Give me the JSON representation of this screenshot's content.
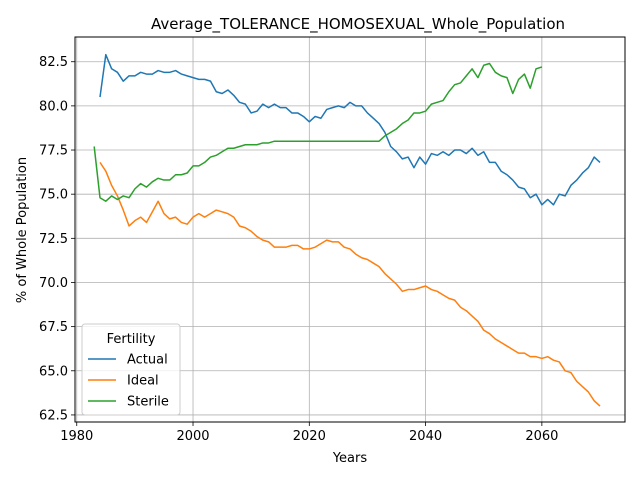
{
  "chart_data": {
    "type": "line",
    "title": "Average_TOLERANCE_HOMOSEXUAL_Whole_Population",
    "xlabel": "Years",
    "ylabel": "% of Whole Population",
    "xlim": [
      1979.7,
      1974.3
    ],
    "ylim": [
      62.1,
      83.9
    ],
    "xticks": [
      1980,
      2000,
      2020,
      2040,
      2060
    ],
    "yticks": [
      62.5,
      65.0,
      67.5,
      70.0,
      72.5,
      75.0,
      77.5,
      80.0,
      82.5
    ],
    "grid": true,
    "legend": {
      "title": "Fertility",
      "placement": "lower-left"
    },
    "series": [
      {
        "name": "Actual",
        "color": "#1f77b4",
        "x": [
          1984,
          1985,
          1986,
          1987,
          1988,
          1989,
          1990,
          1991,
          1992,
          1993,
          1994,
          1995,
          1996,
          1997,
          1998,
          1999,
          2000,
          2001,
          2002,
          2003,
          2004,
          2005,
          2006,
          2007,
          2008,
          2009,
          2010,
          2011,
          2012,
          2013,
          2014,
          2015,
          2016,
          2017,
          2018,
          2019,
          2020,
          2021,
          2022,
          2023,
          2024,
          2025,
          2026,
          2027,
          2028,
          2029,
          2030,
          2031,
          2032,
          2033,
          2034,
          2035,
          2036,
          2037,
          2038,
          2039,
          2040,
          2041,
          2042,
          2043,
          2044,
          2045,
          2046,
          2047,
          2048,
          2049,
          2050,
          2051,
          2052,
          2053,
          2054,
          2055,
          2056,
          2057,
          2058,
          2059,
          2060,
          2061,
          2062,
          2063,
          2064,
          2065,
          2066,
          2067,
          2068,
          2069,
          2070
        ],
        "values": [
          80.5,
          82.9,
          82.1,
          81.9,
          81.4,
          81.7,
          81.7,
          81.9,
          81.8,
          81.8,
          82.0,
          81.9,
          81.9,
          82.0,
          81.8,
          81.7,
          81.6,
          81.5,
          81.5,
          81.4,
          80.8,
          80.7,
          80.9,
          80.6,
          80.2,
          80.1,
          79.6,
          79.7,
          80.1,
          79.9,
          80.1,
          79.9,
          79.9,
          79.6,
          79.6,
          79.4,
          79.1,
          79.4,
          79.3,
          79.8,
          79.9,
          80.0,
          79.9,
          80.2,
          80.0,
          80.0,
          79.6,
          79.3,
          79.0,
          78.5,
          77.7,
          77.4,
          77.0,
          77.1,
          76.5,
          77.1,
          76.7,
          77.3,
          77.2,
          77.4,
          77.2,
          77.5,
          77.5,
          77.3,
          77.6,
          77.2,
          77.4,
          76.8,
          76.8,
          76.3,
          76.1,
          75.8,
          75.4,
          75.3,
          74.8,
          75.0,
          74.4,
          74.7,
          74.4,
          75.0,
          74.9,
          75.5,
          75.8,
          76.2,
          76.5,
          77.1,
          76.8
        ]
      },
      {
        "name": "Ideal",
        "color": "#ff7f0e",
        "x": [
          1984,
          1985,
          1986,
          1987,
          1988,
          1989,
          1990,
          1991,
          1992,
          1993,
          1994,
          1995,
          1996,
          1997,
          1998,
          1999,
          2000,
          2001,
          2002,
          2003,
          2004,
          2005,
          2006,
          2007,
          2008,
          2009,
          2010,
          2011,
          2012,
          2013,
          2014,
          2015,
          2016,
          2017,
          2018,
          2019,
          2020,
          2021,
          2022,
          2023,
          2024,
          2025,
          2026,
          2027,
          2028,
          2029,
          2030,
          2031,
          2032,
          2033,
          2034,
          2035,
          2036,
          2037,
          2038,
          2039,
          2040,
          2041,
          2042,
          2043,
          2044,
          2045,
          2046,
          2047,
          2048,
          2049,
          2050,
          2051,
          2052,
          2053,
          2054,
          2055,
          2056,
          2057,
          2058,
          2059,
          2060,
          2061,
          2062,
          2063,
          2064,
          2065,
          2066,
          2067,
          2068,
          2069,
          2070
        ],
        "values": [
          76.8,
          76.3,
          75.5,
          74.9,
          74.1,
          73.2,
          73.5,
          73.7,
          73.4,
          74.0,
          74.6,
          73.9,
          73.6,
          73.7,
          73.4,
          73.3,
          73.7,
          73.9,
          73.7,
          73.9,
          74.1,
          74.0,
          73.9,
          73.7,
          73.2,
          73.1,
          72.9,
          72.6,
          72.4,
          72.3,
          72.0,
          72.0,
          72.0,
          72.1,
          72.1,
          71.9,
          71.9,
          72.0,
          72.2,
          72.4,
          72.3,
          72.3,
          72.0,
          71.9,
          71.6,
          71.4,
          71.3,
          71.1,
          70.9,
          70.5,
          70.2,
          69.9,
          69.5,
          69.6,
          69.6,
          69.7,
          69.8,
          69.6,
          69.5,
          69.3,
          69.1,
          69.0,
          68.6,
          68.4,
          68.1,
          67.8,
          67.3,
          67.1,
          66.8,
          66.6,
          66.4,
          66.2,
          66.0,
          66.0,
          65.8,
          65.8,
          65.7,
          65.8,
          65.6,
          65.5,
          65.0,
          64.9,
          64.4,
          64.1,
          63.8,
          63.3,
          63.0
        ]
      },
      {
        "name": "Sterile",
        "color": "#2ca02c",
        "x": [
          1983,
          1984,
          1985,
          1986,
          1987,
          1988,
          1989,
          1990,
          1991,
          1992,
          1993,
          1994,
          1995,
          1996,
          1997,
          1998,
          1999,
          2000,
          2001,
          2002,
          2003,
          2004,
          2005,
          2006,
          2007,
          2008,
          2009,
          2010,
          2011,
          2012,
          2013,
          2014,
          2015,
          2016,
          2017,
          2018,
          2019,
          2020,
          2021,
          2022,
          2023,
          2024,
          2025,
          2026,
          2027,
          2028,
          2029,
          2030,
          2031,
          2032,
          2033,
          2034,
          2035,
          2036,
          2037,
          2038,
          2039,
          2040,
          2041,
          2042,
          2043,
          2044,
          2045,
          2046,
          2047,
          2048,
          2049,
          2050,
          2051,
          2052,
          2053,
          2054,
          2055,
          2056,
          2057,
          2058,
          2059,
          2060
        ],
        "values": [
          77.7,
          74.8,
          74.6,
          74.9,
          74.7,
          74.9,
          74.8,
          75.3,
          75.6,
          75.4,
          75.7,
          75.9,
          75.8,
          75.8,
          76.1,
          76.1,
          76.2,
          76.6,
          76.6,
          76.8,
          77.1,
          77.2,
          77.4,
          77.6,
          77.6,
          77.7,
          77.8,
          77.8,
          77.8,
          77.9,
          77.9,
          78.0,
          78.0,
          78.0,
          78.0,
          78.0,
          78.0,
          78.0,
          78.0,
          78.0,
          78.0,
          78.0,
          78.0,
          78.0,
          78.0,
          78.0,
          78.0,
          78.0,
          78.0,
          78.0,
          78.3,
          78.5,
          78.7,
          79.0,
          79.2,
          79.6,
          79.6,
          79.7,
          80.1,
          80.2,
          80.3,
          80.8,
          81.2,
          81.3,
          81.7,
          82.1,
          81.6,
          82.3,
          82.4,
          81.9,
          81.7,
          81.6,
          80.7,
          81.5,
          81.8,
          81.0,
          82.1,
          82.2
        ]
      }
    ]
  }
}
